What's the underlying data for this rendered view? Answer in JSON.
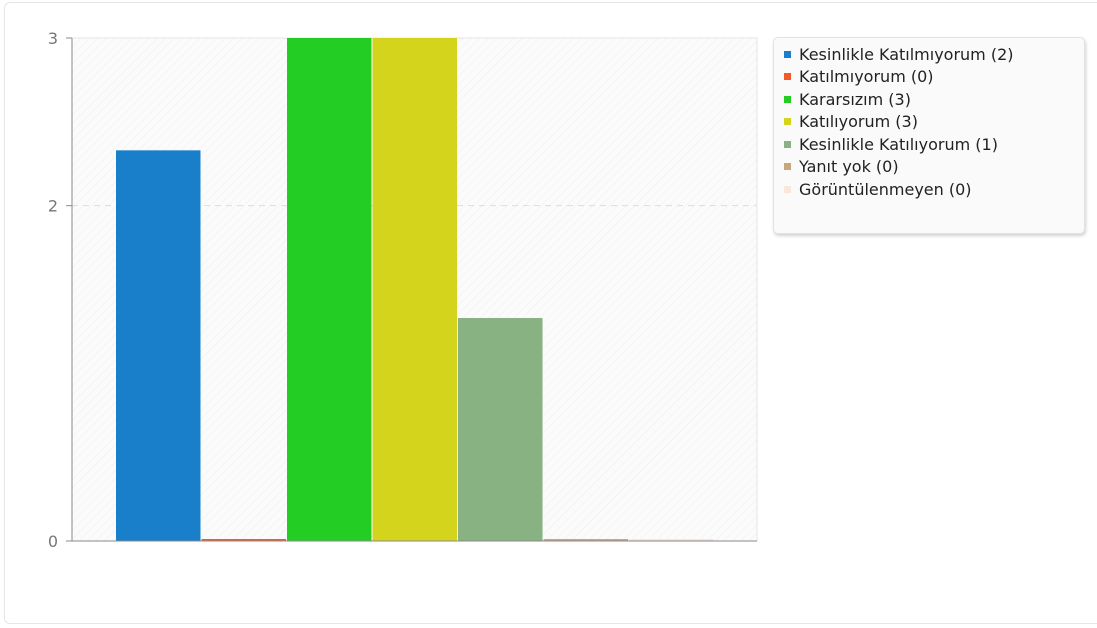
{
  "chart_data": {
    "type": "bar",
    "title": "",
    "xlabel": "",
    "ylabel": "",
    "ylim": [
      0,
      3
    ],
    "y_ticks": [
      0,
      2,
      3
    ],
    "grid": true,
    "legend_position": "right",
    "categories": [
      "Kesinlikle Katılmıyorum (2)",
      "Katılmıyorum (0)",
      "Kararsızım (3)",
      "Katılıyorum (3)",
      "Kesinlikle Katılıyorum (1)",
      "Yanıt yok (0)",
      "Görüntülenmeyen (0)"
    ],
    "values": [
      2.33,
      0,
      3,
      3,
      1.33,
      0,
      0
    ],
    "colors": [
      "#1a7fca",
      "#f25a2b",
      "#23cd23",
      "#d4d41c",
      "#89b282",
      "#c9a77d",
      "#f9e6dc"
    ]
  }
}
